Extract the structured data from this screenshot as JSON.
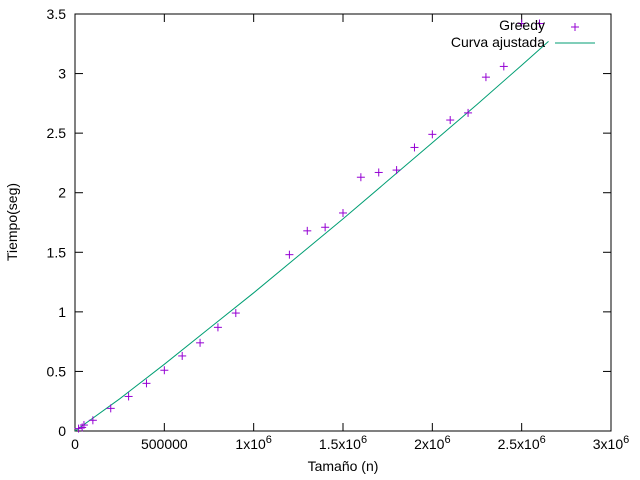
{
  "chart_data": {
    "type": "scatter",
    "xlabel": "Tamaño (n)",
    "ylabel": "Tiempo(seg)",
    "xlim": [
      0,
      3000000
    ],
    "ylim": [
      0,
      3.5
    ],
    "grid": false,
    "legend_position": "top-right",
    "x_ticks": [
      {
        "value": 0,
        "base": "0",
        "exp": ""
      },
      {
        "value": 500000,
        "base": "500000",
        "exp": ""
      },
      {
        "value": 1000000,
        "base": "1x10",
        "exp": "6"
      },
      {
        "value": 1500000,
        "base": "1.5x10",
        "exp": "6"
      },
      {
        "value": 2000000,
        "base": "2x10",
        "exp": "6"
      },
      {
        "value": 2500000,
        "base": "2.5x10",
        "exp": "6"
      },
      {
        "value": 3000000,
        "base": "3x10",
        "exp": "6"
      }
    ],
    "y_ticks": [
      {
        "value": 0,
        "label": "0"
      },
      {
        "value": 0.5,
        "label": "0.5"
      },
      {
        "value": 1,
        "label": "1"
      },
      {
        "value": 1.5,
        "label": "1.5"
      },
      {
        "value": 2,
        "label": "2"
      },
      {
        "value": 2.5,
        "label": "2.5"
      },
      {
        "value": 3,
        "label": "3"
      },
      {
        "value": 3.5,
        "label": "3.5"
      }
    ],
    "series": [
      {
        "name": "Greedy",
        "kind": "points",
        "marker": "plus",
        "color": "#9400d3",
        "x": [
          20000,
          40000,
          50000,
          100000,
          200000,
          300000,
          400000,
          500000,
          600000,
          700000,
          800000,
          900000,
          1200000,
          1300000,
          1400000,
          1500000,
          1600000,
          1700000,
          1800000,
          1900000,
          2000000,
          2100000,
          2200000,
          2300000,
          2400000,
          2500000,
          2600000
        ],
        "y": [
          0.02,
          0.03,
          0.05,
          0.09,
          0.19,
          0.29,
          0.4,
          0.51,
          0.63,
          0.74,
          0.87,
          0.99,
          1.48,
          1.68,
          1.71,
          1.83,
          2.13,
          2.17,
          2.19,
          2.38,
          2.49,
          2.61,
          2.67,
          2.97,
          3.06,
          3.42,
          3.42
        ]
      },
      {
        "name": "Curva ajustada",
        "kind": "line",
        "color": "#009e73",
        "x": [
          0,
          250000,
          500000,
          750000,
          1000000,
          1250000,
          1500000,
          1750000,
          2000000,
          2250000,
          2500000,
          2650000
        ],
        "y": [
          0.0,
          0.27,
          0.56,
          0.86,
          1.16,
          1.47,
          1.78,
          2.1,
          2.42,
          2.74,
          3.07,
          3.27
        ]
      }
    ]
  }
}
